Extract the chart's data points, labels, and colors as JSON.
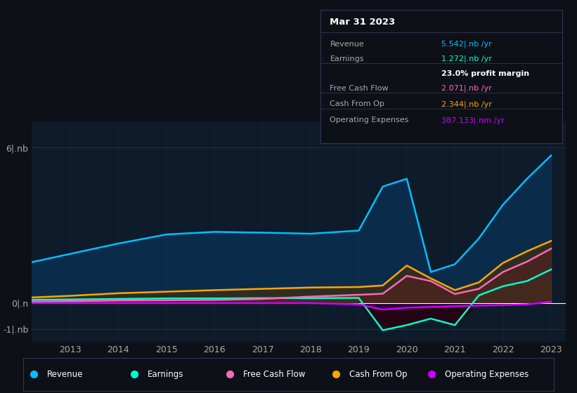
{
  "bg_color": "#0d1117",
  "plot_bg_color": "#0d1b2a",
  "grid_color": "#1e3050",
  "years": [
    2012,
    2013,
    2014,
    2015,
    2016,
    2017,
    2018,
    2019,
    2019.5,
    2020,
    2020.5,
    2021,
    2021.5,
    2022,
    2022.5,
    2023
  ],
  "revenue": [
    1.5,
    1.9,
    2.3,
    2.65,
    2.75,
    2.72,
    2.68,
    2.8,
    4.5,
    4.8,
    1.2,
    1.5,
    2.5,
    3.8,
    4.8,
    5.7
  ],
  "earnings": [
    0.12,
    0.14,
    0.16,
    0.18,
    0.18,
    0.19,
    0.19,
    0.2,
    -1.05,
    -0.85,
    -0.6,
    -0.85,
    0.3,
    0.65,
    0.85,
    1.3
  ],
  "free_cash": [
    0.05,
    0.07,
    0.1,
    0.11,
    0.12,
    0.16,
    0.25,
    0.32,
    0.36,
    1.05,
    0.85,
    0.35,
    0.55,
    1.2,
    1.6,
    2.1
  ],
  "cash_from_op": [
    0.2,
    0.28,
    0.38,
    0.44,
    0.5,
    0.55,
    0.6,
    0.62,
    0.68,
    1.45,
    0.95,
    0.5,
    0.8,
    1.55,
    2.0,
    2.4
  ],
  "op_expenses": [
    0.0,
    0.0,
    0.0,
    0.0,
    0.0,
    0.0,
    0.0,
    -0.05,
    -0.25,
    -0.18,
    -0.15,
    -0.12,
    -0.1,
    -0.08,
    -0.05,
    0.05
  ],
  "revenue_color": "#00bfff",
  "earnings_color": "#00ffcc",
  "free_cash_color": "#ff69b4",
  "cash_from_op_color": "#ffa500",
  "op_expenses_color": "#cc00ff",
  "revenue_fill": "#0a3050",
  "earnings_fill": "#004444",
  "free_cash_fill": "#5c1040",
  "cash_from_op_fill": "#4a3000",
  "op_expenses_fill": "#330055",
  "ylim": [
    -1.5,
    7.0
  ],
  "xticks": [
    2013,
    2014,
    2015,
    2016,
    2017,
    2018,
    2019,
    2020,
    2021,
    2022,
    2023
  ],
  "legend_labels": [
    "Revenue",
    "Earnings",
    "Free Cash Flow",
    "Cash From Op",
    "Operating Expenses"
  ],
  "legend_colors": [
    "#00bfff",
    "#00ffcc",
    "#ff69b4",
    "#ffa500",
    "#cc00ff"
  ],
  "info_title": "Mar 31 2023",
  "info_rows": [
    {
      "label": "Revenue",
      "value": "5.542|.nb /yr",
      "color": "#00bfff"
    },
    {
      "label": "Earnings",
      "value": "1.272|.nb /yr",
      "color": "#00ffcc"
    },
    {
      "label": "",
      "value": "23.0% profit margin",
      "color": "#ffffff"
    },
    {
      "label": "Free Cash Flow",
      "value": "2.071|.nb /yr",
      "color": "#ff69b4"
    },
    {
      "label": "Cash From Op",
      "value": "2.344|.nb /yr",
      "color": "#ffa500"
    },
    {
      "label": "Operating Expenses",
      "value": "387.133|.nm /yr",
      "color": "#cc00ff"
    }
  ]
}
